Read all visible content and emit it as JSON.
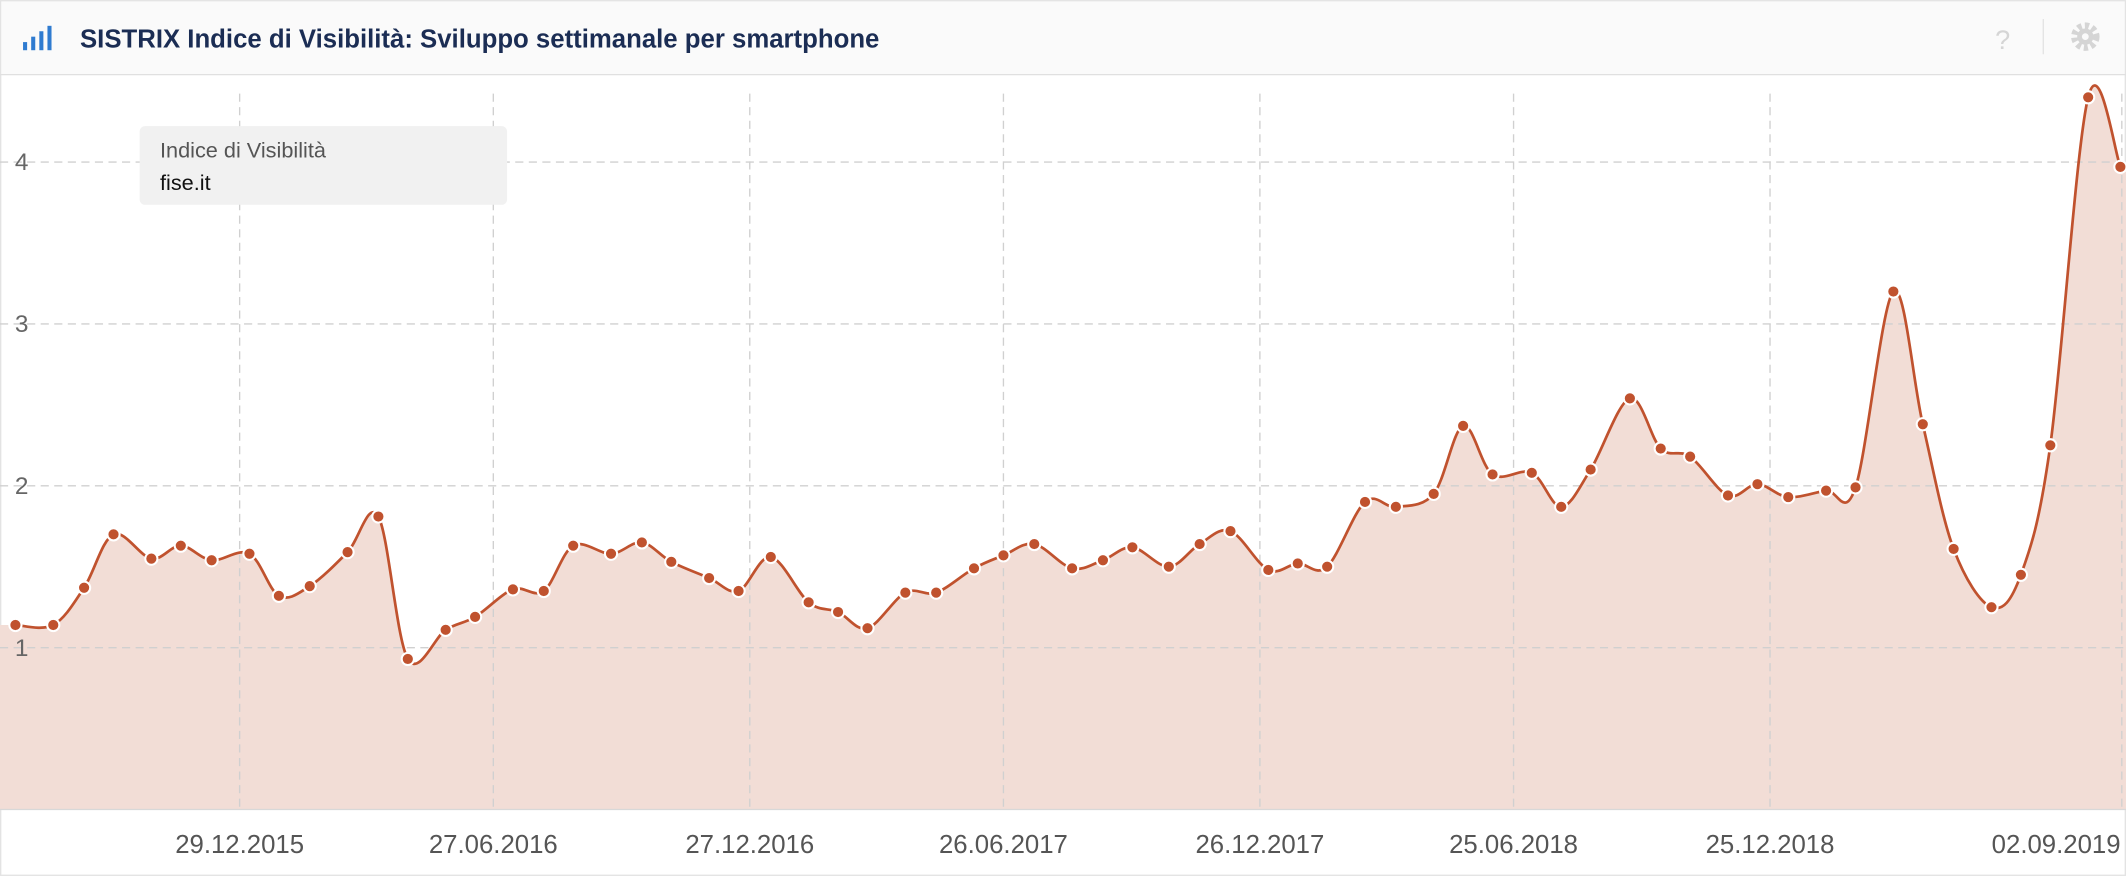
{
  "chart_data": {
    "type": "line",
    "title": "SISTRIX Indice di Visibilità: Sviluppo settimanale per smartphone",
    "legend_title": "Indice di Visibilità",
    "legend": "top-left",
    "grid": true,
    "x": [
      "2015-07-22",
      "2015-08-18",
      "2015-09-09",
      "2015-09-30",
      "2015-10-27",
      "2015-11-17",
      "2015-12-09",
      "2016-01-05",
      "2016-01-26",
      "2016-02-17",
      "2016-03-15",
      "2016-04-06",
      "2016-04-27",
      "2016-05-24",
      "2016-06-14",
      "2016-07-11",
      "2016-08-02",
      "2016-08-23",
      "2016-09-19",
      "2016-10-11",
      "2016-11-01",
      "2016-11-28",
      "2016-12-19",
      "2017-01-11",
      "2017-02-07",
      "2017-02-28",
      "2017-03-21",
      "2017-04-17",
      "2017-05-09",
      "2017-06-05",
      "2017-06-26",
      "2017-07-18",
      "2017-08-14",
      "2017-09-05",
      "2017-09-26",
      "2017-10-22",
      "2017-11-13",
      "2017-12-05",
      "2018-01-01",
      "2018-01-22",
      "2018-02-12",
      "2018-03-11",
      "2018-04-02",
      "2018-04-29",
      "2018-05-20",
      "2018-06-10",
      "2018-07-08",
      "2018-07-29",
      "2018-08-19",
      "2018-09-16",
      "2018-10-08",
      "2018-10-29",
      "2018-11-25",
      "2018-12-16",
      "2019-01-07",
      "2019-02-03",
      "2019-02-24",
      "2019-03-23",
      "2019-04-13",
      "2019-05-05",
      "2019-06-01",
      "2019-06-22",
      "2019-07-13",
      "2019-08-09",
      "2019-09-01"
    ],
    "series": [
      {
        "name": "fise.it",
        "color": "#c0522e",
        "values": [
          1.14,
          1.14,
          1.37,
          1.7,
          1.55,
          1.63,
          1.54,
          1.58,
          1.32,
          1.38,
          1.59,
          1.81,
          0.93,
          1.11,
          1.19,
          1.36,
          1.35,
          1.63,
          1.58,
          1.65,
          1.53,
          1.43,
          1.35,
          1.56,
          1.28,
          1.22,
          1.12,
          1.34,
          1.34,
          1.49,
          1.57,
          1.64,
          1.49,
          1.54,
          1.62,
          1.5,
          1.64,
          1.72,
          1.48,
          1.52,
          1.5,
          1.9,
          1.87,
          1.95,
          2.37,
          2.07,
          2.08,
          1.87,
          2.1,
          2.54,
          2.23,
          2.18,
          1.94,
          2.01,
          1.93,
          1.97,
          1.99,
          3.2,
          2.38,
          1.61,
          1.25,
          1.45,
          2.25,
          4.4,
          3.97
        ]
      }
    ],
    "xlim": [
      "2015-07-11",
      "2019-09-05"
    ],
    "xticks": [
      {
        "value": "2015-12-29",
        "label": "29.12.2015"
      },
      {
        "value": "2016-06-27",
        "label": "27.06.2016"
      },
      {
        "value": "2016-12-27",
        "label": "27.12.2016"
      },
      {
        "value": "2017-06-26",
        "label": "26.06.2017"
      },
      {
        "value": "2017-12-26",
        "label": "26.12.2017"
      },
      {
        "value": "2018-06-25",
        "label": "25.06.2018"
      },
      {
        "value": "2018-12-25",
        "label": "25.12.2018"
      },
      {
        "value": "2019-09-02",
        "label": "02.09.2019"
      }
    ],
    "ylim": [
      0,
      4.54
    ],
    "yticks": [
      1,
      2,
      3,
      4
    ]
  }
}
